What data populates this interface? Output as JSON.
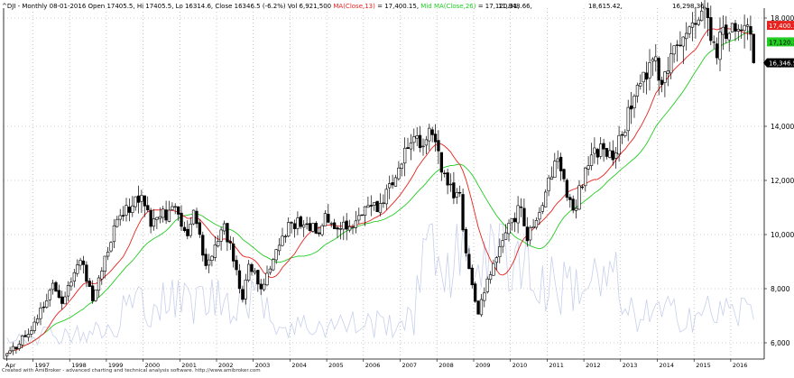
{
  "header": {
    "title_text": "^DJI - Monthly 08-01-2016 Open 17405.5, Hi 17405.5, Lo 16314.6, Close 16346.5 (-6.2%) Vol 6,921,500",
    "ma13_text": "MA(Close,13)",
    "ma13_value": "= 17,400.15,",
    "mid_prefix": "Mid",
    "ma26_text": "MA(Close,26)",
    "ma26_value": "= 17,120.31,",
    "extra_values": [
      "11,848.66,",
      "18,615.42,",
      "16,298.36"
    ]
  },
  "footer": {
    "credit": "Created with AmiBroker - advanced charting and technical analysis software. http://www.amibroker.com"
  },
  "colors": {
    "candle": "#000000",
    "ma13": "#e8221e",
    "ma26": "#22cc22",
    "volume": "#c8d0ec",
    "grid": "#a0a0a0",
    "close_label": "#000000",
    "ma13_label": "#e8221e",
    "ma26_label": "#22cc22"
  },
  "chart_data": {
    "type": "candlestick",
    "period": "monthly",
    "y_axis_side": "right",
    "ylim": [
      5400,
      18800
    ],
    "y_ticks": [
      6000,
      8000,
      10000,
      12000,
      14000,
      16298,
      18000
    ],
    "y_tick_labels": [
      "6,000",
      "8,000",
      "10,000",
      "12,000",
      "14,000",
      "16,298.36",
      "18,000"
    ],
    "x_range": [
      "1996-04",
      "2016-08"
    ],
    "x_ticks": [
      "1997",
      "1998",
      "1999",
      "2000",
      "2001",
      "2002",
      "2003",
      "2004",
      "2005",
      "2006",
      "2007",
      "2008",
      "2009",
      "2010",
      "2011",
      "2012",
      "2013",
      "2014",
      "2015",
      "2016"
    ],
    "x_start_label": "Apr",
    "last_bar": {
      "date": "2016-08",
      "open": 17405.5,
      "high": 17405.5,
      "low": 16314.6,
      "close": 16346.5,
      "change": "-6.2%",
      "volume": "6,921,500"
    },
    "axis_labels": {
      "ma13": {
        "value": 17400.15,
        "text": "17,400.1"
      },
      "ma26": {
        "value": 17120.31,
        "text": "17,120.3"
      },
      "close": {
        "value": 16346.5,
        "text": "16,346.5"
      }
    },
    "anchors": [
      [
        "1996-04",
        5600
      ],
      [
        "1996-12",
        6450
      ],
      [
        "1997-07",
        8200
      ],
      [
        "1997-10",
        7450
      ],
      [
        "1998-04",
        9050
      ],
      [
        "1998-08",
        7550
      ],
      [
        "1998-12",
        9200
      ],
      [
        "1999-05",
        10700
      ],
      [
        "1999-12",
        11450
      ],
      [
        "2000-03",
        10300
      ],
      [
        "2000-09",
        10900
      ],
      [
        "2000-12",
        10750
      ],
      [
        "2001-03",
        9950
      ],
      [
        "2001-05",
        10900
      ],
      [
        "2001-09",
        8850
      ],
      [
        "2002-03",
        10400
      ],
      [
        "2002-07",
        8700
      ],
      [
        "2002-09",
        7600
      ],
      [
        "2002-11",
        8900
      ],
      [
        "2003-03",
        7990
      ],
      [
        "2003-12",
        10450
      ],
      [
        "2004-06",
        10400
      ],
      [
        "2004-10",
        10030
      ],
      [
        "2004-12",
        10780
      ],
      [
        "2005-04",
        10200
      ],
      [
        "2005-12",
        10720
      ],
      [
        "2006-06",
        11150
      ],
      [
        "2006-12",
        12460
      ],
      [
        "2007-05",
        13620
      ],
      [
        "2007-07",
        13210
      ],
      [
        "2007-10",
        13930
      ],
      [
        "2008-03",
        12260
      ],
      [
        "2008-06",
        11350
      ],
      [
        "2008-08",
        11540
      ],
      [
        "2008-10",
        9320
      ],
      [
        "2009-02",
        7060
      ],
      [
        "2009-03",
        7600
      ],
      [
        "2009-12",
        10420
      ],
      [
        "2010-04",
        11000
      ],
      [
        "2010-06",
        9770
      ],
      [
        "2010-12",
        11570
      ],
      [
        "2011-04",
        12800
      ],
      [
        "2011-09",
        10900
      ],
      [
        "2012-04",
        13200
      ],
      [
        "2012-11",
        13020
      ],
      [
        "2013-05",
        15120
      ],
      [
        "2013-12",
        16570
      ],
      [
        "2014-01",
        15700
      ],
      [
        "2014-12",
        17820
      ],
      [
        "2015-05",
        18010
      ],
      [
        "2015-08",
        16530
      ],
      [
        "2015-10",
        17660
      ],
      [
        "2015-12",
        17430
      ],
      [
        "2016-07",
        17400
      ],
      [
        "2016-08",
        16346.5
      ]
    ],
    "series": [
      {
        "name": "MA(Close,13)",
        "value": 17400.15
      },
      {
        "name": "MA(Close,26)",
        "value": 17120.31
      }
    ]
  }
}
